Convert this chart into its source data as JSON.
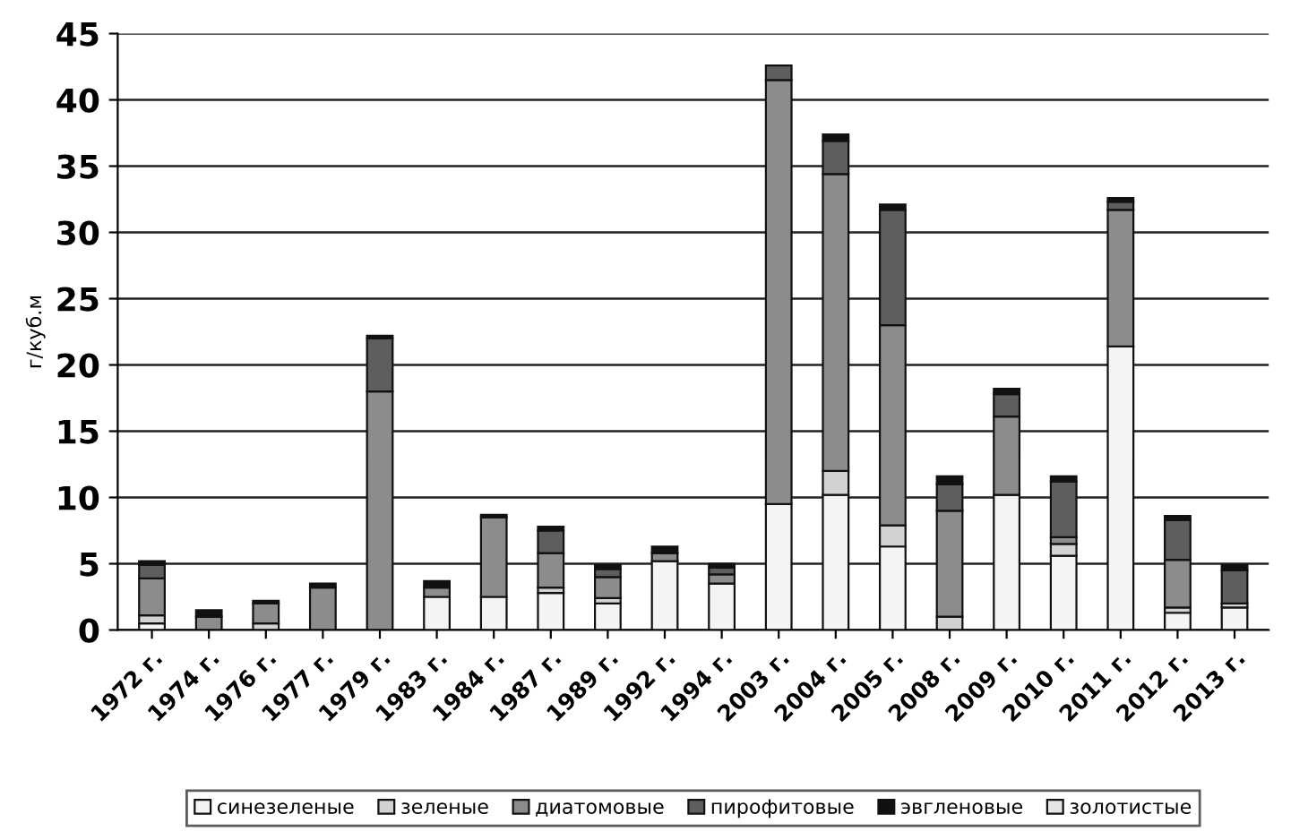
{
  "chart_data": {
    "type": "bar",
    "stacked": true,
    "ylabel": "г/куб.м",
    "categories": [
      "1972 г.",
      "1974 г.",
      "1976 г.",
      "1977 г.",
      "1979 г.",
      "1983 г.",
      "1984 г.",
      "1987 г.",
      "1989 г.",
      "1992 г.",
      "1994 г.",
      "2003 г.",
      "2004 г.",
      "2005 г.",
      "2008 г.",
      "2009 г.",
      "2010 г.",
      "2011 г.",
      "2012 г.",
      "2013 г."
    ],
    "series": [
      {
        "name": "синезеленые",
        "color": "#f4f4f4",
        "values": [
          0.5,
          null,
          null,
          null,
          null,
          2.5,
          2.5,
          2.8,
          2.0,
          5.2,
          3.5,
          9.5,
          10.2,
          6.3,
          null,
          10.2,
          5.6,
          21.4,
          1.3,
          1.7
        ]
      },
      {
        "name": "зеленые",
        "color": "#d2d2d2",
        "values": [
          0.6,
          null,
          0.5,
          null,
          null,
          null,
          null,
          0.4,
          0.4,
          null,
          null,
          null,
          1.8,
          1.6,
          1.0,
          null,
          0.9,
          null,
          0.4,
          0.3
        ]
      },
      {
        "name": "диатомовые",
        "color": "#8c8c8c",
        "values": [
          2.8,
          1.0,
          1.5,
          3.2,
          18.0,
          0.7,
          6.0,
          2.6,
          1.6,
          0.6,
          0.7,
          32.0,
          22.4,
          15.1,
          8.0,
          5.9,
          0.5,
          10.3,
          3.6,
          null
        ]
      },
      {
        "name": "пирофитовые",
        "color": "#5e5e5e",
        "values": [
          1.0,
          null,
          null,
          null,
          4.0,
          null,
          null,
          1.7,
          0.6,
          null,
          0.5,
          1.1,
          2.5,
          8.7,
          2.0,
          1.7,
          4.2,
          0.6,
          3.0,
          2.5
        ]
      },
      {
        "name": "эвгленовые",
        "color": "#111111",
        "values": [
          0.3,
          0.5,
          0.2,
          0.3,
          0.2,
          0.5,
          0.2,
          0.3,
          0.3,
          0.5,
          0.3,
          null,
          0.5,
          0.4,
          0.6,
          0.4,
          0.4,
          0.3,
          0.3,
          0.4
        ]
      },
      {
        "name": "золотистые",
        "color": "#e6e6e6",
        "values": [
          null,
          null,
          null,
          null,
          null,
          null,
          null,
          null,
          null,
          null,
          null,
          null,
          null,
          null,
          null,
          null,
          null,
          null,
          null,
          null
        ]
      }
    ],
    "ylim": [
      0,
      45
    ],
    "yticks": [
      0,
      5,
      10,
      15,
      20,
      25,
      30,
      35,
      40,
      45
    ],
    "grid": "y",
    "legend": "bottom"
  }
}
